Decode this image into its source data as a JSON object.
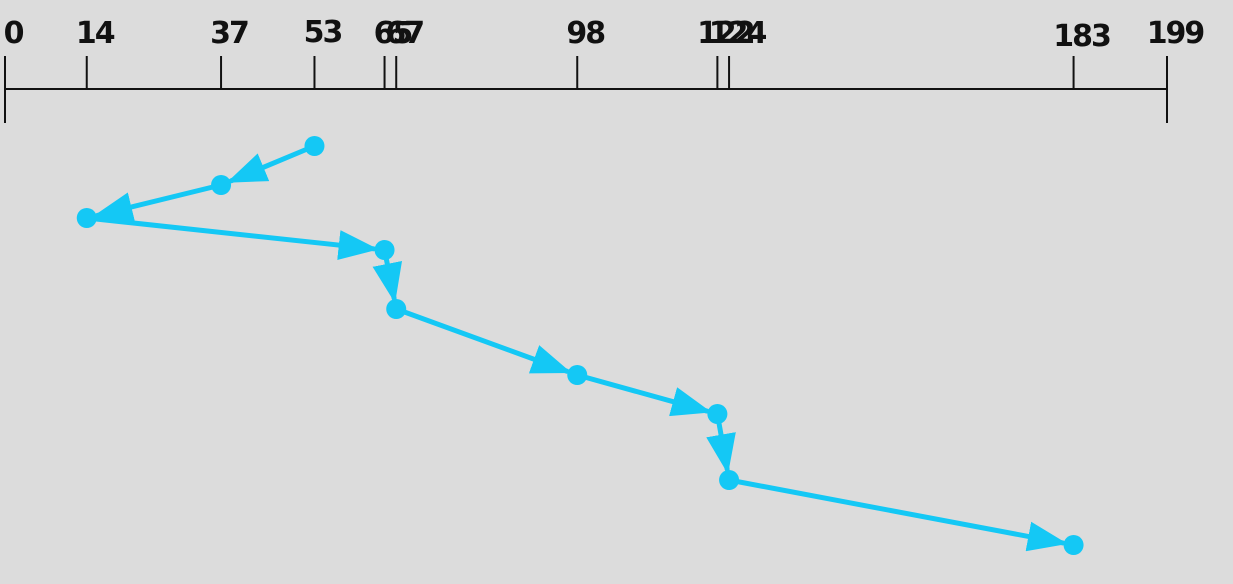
{
  "diagram": {
    "type": "disk-scheduling-seek-path",
    "axis": {
      "min": 0,
      "max": 199,
      "ticks": [
        0,
        14,
        37,
        53,
        65,
        67,
        98,
        122,
        124,
        183,
        199
      ]
    },
    "request_sequence": [
      53,
      37,
      14,
      65,
      67,
      98,
      122,
      124,
      183
    ],
    "colors": {
      "background": "#dcdcdc",
      "axis": "#111111",
      "path": "#14c8f5"
    }
  }
}
